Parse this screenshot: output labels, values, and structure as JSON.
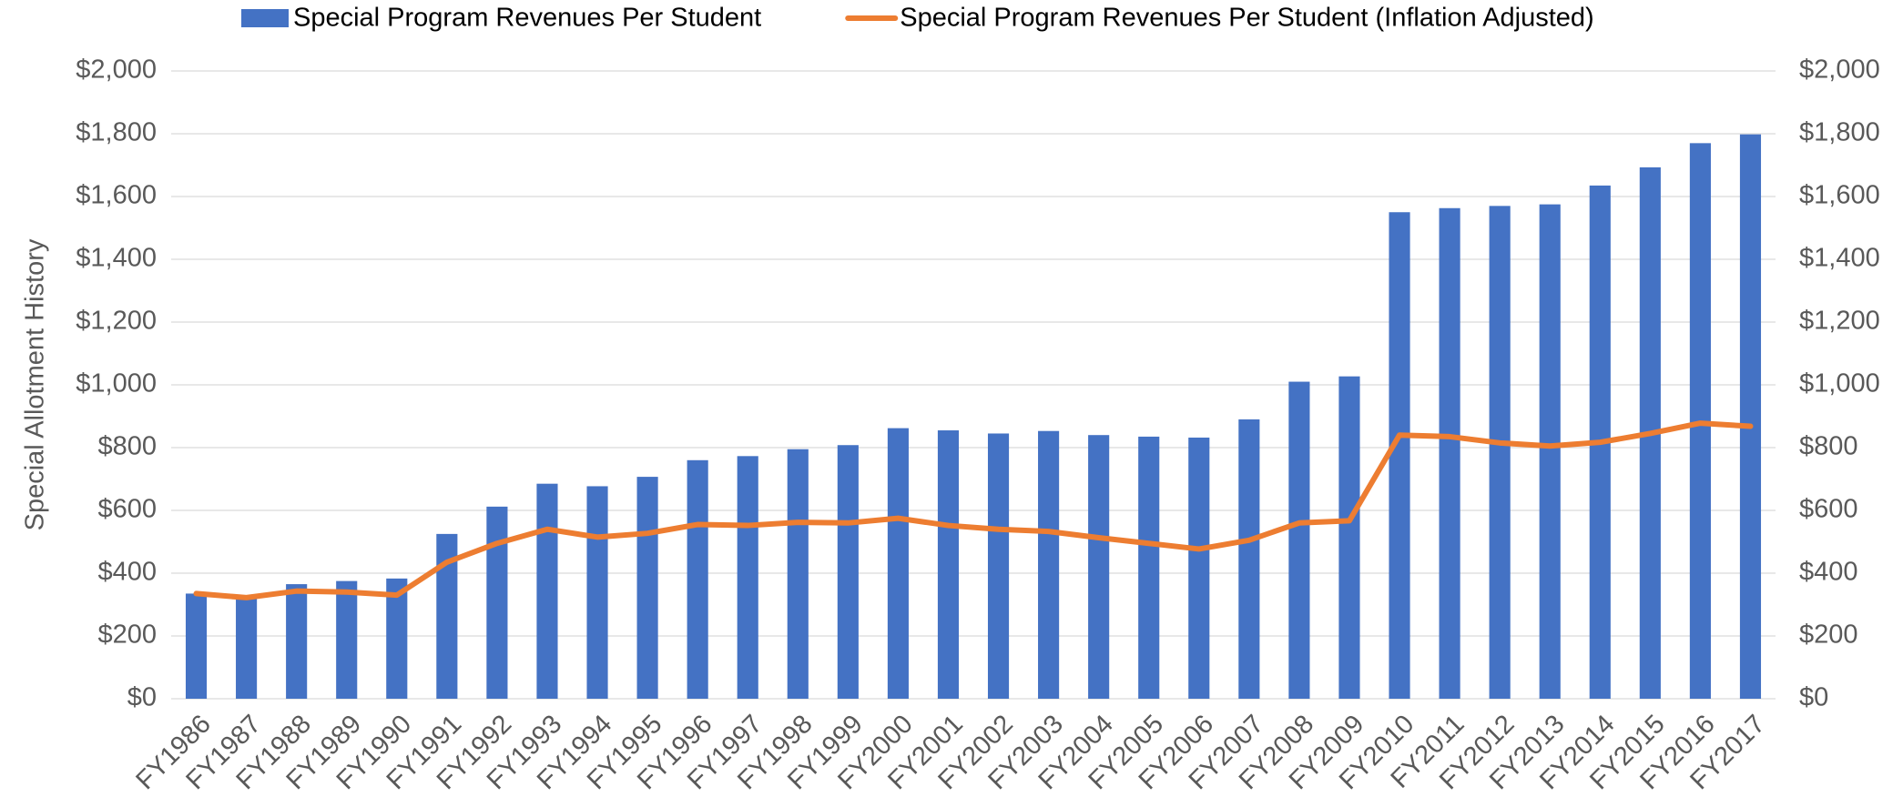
{
  "chart_data": {
    "type": "bar_line",
    "y_axis_label": "Special Allotment History",
    "categories": [
      "FY1986",
      "FY1987",
      "FY1988",
      "FY1989",
      "FY1990",
      "FY1991",
      "FY1992",
      "FY1993",
      "FY1994",
      "FY1995",
      "FY1996",
      "FY1997",
      "FY1998",
      "FY1999",
      "FY2000",
      "FY2001",
      "FY2002",
      "FY2003",
      "FY2004",
      "FY2005",
      "FY2006",
      "FY2007",
      "FY2008",
      "FY2009",
      "FY2010",
      "FY2011",
      "FY2012",
      "FY2013",
      "FY2014",
      "FY2015",
      "FY2016",
      "FY2017"
    ],
    "series": [
      {
        "name": "Special Program Revenues Per Student",
        "type": "bar",
        "color": "#4472c4",
        "values": [
          335,
          325,
          365,
          375,
          383,
          525,
          612,
          685,
          677,
          707,
          760,
          773,
          795,
          808,
          862,
          855,
          845,
          853,
          840,
          835,
          832,
          890,
          1010,
          1027,
          1550,
          1563,
          1570,
          1575,
          1635,
          1693,
          1770,
          1798
        ]
      },
      {
        "name": "Special Program Revenues Per Student (Inflation Adjusted)",
        "type": "line",
        "color": "#ed7d31",
        "axis": "y2",
        "values": [
          335,
          322,
          343,
          340,
          330,
          435,
          495,
          540,
          515,
          527,
          555,
          552,
          562,
          560,
          575,
          552,
          540,
          533,
          513,
          495,
          477,
          505,
          560,
          567,
          840,
          835,
          815,
          805,
          817,
          845,
          878,
          868
        ]
      }
    ],
    "ylim": [
      0,
      2000
    ],
    "yticks": [
      {
        "value": 0,
        "label": "$0"
      },
      {
        "value": 200,
        "label": "$200"
      },
      {
        "value": 400,
        "label": "$400"
      },
      {
        "value": 600,
        "label": "$600"
      },
      {
        "value": 800,
        "label": "$800"
      },
      {
        "value": 1000,
        "label": "$1,000"
      },
      {
        "value": 1200,
        "label": "$1,200"
      },
      {
        "value": 1400,
        "label": "$1,400"
      },
      {
        "value": 1600,
        "label": "$1,600"
      },
      {
        "value": 1800,
        "label": "$1,800"
      },
      {
        "value": 2000,
        "label": "$2,000"
      }
    ],
    "y2lim": [
      0,
      2000
    ],
    "y2ticks": [
      {
        "value": 0,
        "label": "$0"
      },
      {
        "value": 200,
        "label": "$200"
      },
      {
        "value": 400,
        "label": "$400"
      },
      {
        "value": 600,
        "label": "$600"
      },
      {
        "value": 800,
        "label": "$800"
      },
      {
        "value": 1000,
        "label": "$1,000"
      },
      {
        "value": 1200,
        "label": "$1,200"
      },
      {
        "value": 1400,
        "label": "$1,400"
      },
      {
        "value": 1600,
        "label": "$1,600"
      },
      {
        "value": 1800,
        "label": "$1,800"
      },
      {
        "value": 2000,
        "label": "$2,000"
      }
    ],
    "grid": true,
    "legend": "top"
  }
}
